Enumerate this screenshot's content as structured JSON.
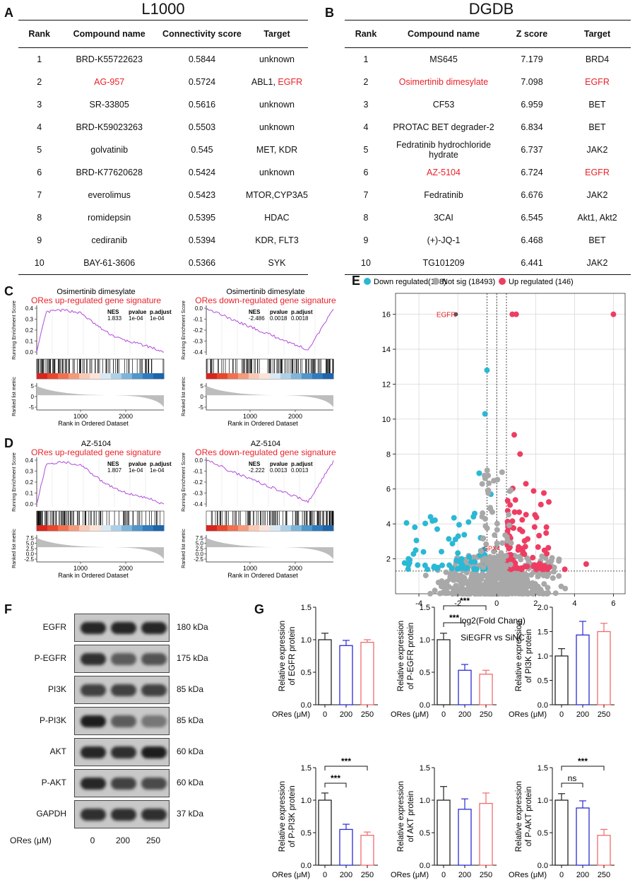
{
  "panels": {
    "A": "A",
    "B": "B",
    "C": "C",
    "D": "D",
    "E": "E",
    "F": "F",
    "G": "G"
  },
  "tableA": {
    "title": "L1000",
    "headers": [
      "Rank",
      "Compound name",
      "Connectivity score",
      "Target"
    ],
    "rows": [
      [
        "1",
        "BRD-K55722623",
        "0.5844",
        "unknown"
      ],
      [
        "2",
        "AG-957",
        "0.5724",
        "ABL1, EGFR"
      ],
      [
        "3",
        "SR-33805",
        "0.5616",
        "unknown"
      ],
      [
        "4",
        "BRD-K59023263",
        "0.5503",
        "unknown"
      ],
      [
        "5",
        "golvatinib",
        "0.545",
        "MET, KDR"
      ],
      [
        "6",
        "BRD-K77620628",
        "0.5424",
        "unknown"
      ],
      [
        "7",
        "everolimus",
        "0.5423",
        "MTOR,CYP3A5"
      ],
      [
        "8",
        "romidepsin",
        "0.5395",
        "HDAC"
      ],
      [
        "9",
        "cediranib",
        "0.5394",
        "KDR, FLT3"
      ],
      [
        "10",
        "BAY-61-3606",
        "0.5366",
        "SYK"
      ]
    ]
  },
  "tableB": {
    "title": "DGDB",
    "headers": [
      "Rank",
      "Compound name",
      "Z score",
      "Target"
    ],
    "rows": [
      [
        "1",
        "MS645",
        "7.179",
        "BRD4"
      ],
      [
        "2",
        "Osimertinib dimesylate",
        "7.098",
        "EGFR"
      ],
      [
        "3",
        "CF53",
        "6.959",
        "BET"
      ],
      [
        "4",
        "PROTAC BET degrader-2",
        "6.834",
        "BET"
      ],
      [
        "5",
        "Fedratinib hydrochloride hydrate",
        "6.737",
        "JAK2"
      ],
      [
        "6",
        "AZ-5104",
        "6.724",
        "EGFR"
      ],
      [
        "7",
        "Fedratinib",
        "6.676",
        "JAK2"
      ],
      [
        "8",
        "3CAI",
        "6.545",
        "Akt1, Akt2"
      ],
      [
        "9",
        "(+)-JQ-1",
        "6.468",
        "BET"
      ],
      [
        "10",
        "TG101209",
        "6.441",
        "JAK2"
      ]
    ]
  },
  "gsea": {
    "ylabel_top": "Running Enrichment Score",
    "ylabel_bottom": "Ranked list metric",
    "xlabel": "Rank in Ordered Dataset",
    "stat_headers": [
      "NES",
      "pvalue",
      "p.adjust"
    ],
    "plots": [
      {
        "drug": "Osimertinib dimesylate",
        "signature": "ORes up-regulated gene signature",
        "nes": "1.833",
        "pvalue": "1e-04",
        "padj": "1e-04",
        "yticks": [
          "0.4",
          "0.3",
          "0.2",
          "0.1",
          "0.0"
        ],
        "mticks": [
          "5",
          "0",
          "-5"
        ]
      },
      {
        "drug": "Osimertinib dimesylate",
        "signature": "ORes down-regulated gene signature",
        "nes": "-2.486",
        "pvalue": "0.0018",
        "padj": "0.0018",
        "yticks": [
          "0.0",
          "-0.1",
          "-0.2",
          "-0.3",
          "-0.4"
        ],
        "mticks": [
          "5",
          "0",
          "-5"
        ]
      },
      {
        "drug": "AZ-5104",
        "signature": "ORes up-regulated gene signature",
        "nes": "1.807",
        "pvalue": "1e-04",
        "padj": "1e-04",
        "yticks": [
          "0.4",
          "0.3",
          "0.2",
          "0.1",
          "0.0"
        ],
        "mticks": [
          "7.5",
          "5.0",
          "2.5",
          "0.0",
          "-2.5"
        ]
      },
      {
        "drug": "AZ-5104",
        "signature": "ORes down-regulated gene signature",
        "nes": "-2.222",
        "pvalue": "0.0013",
        "padj": "0.0013",
        "yticks": [
          "0.0",
          "-0.1",
          "-0.2",
          "-0.3",
          "-0.4"
        ],
        "mticks": [
          "7.5",
          "5.0",
          "2.5",
          "0.0",
          "-2.5"
        ]
      }
    ],
    "xticks": [
      "1000",
      "2000"
    ]
  },
  "volcano": {
    "legend": [
      {
        "label": "Down regulated(108)",
        "color": "#2ab8d4"
      },
      {
        "label": "Not sig (18493)",
        "color": "#a8a8a8"
      },
      {
        "label": "Up regulated (146)",
        "color": "#ee3d63"
      }
    ],
    "xlabel": "log2(Fold Chang)",
    "subtitle": "SiEGFR vs SiNC",
    "xticks": [
      "-4",
      "-2",
      "0",
      "2",
      "4",
      "6"
    ],
    "yticks": [
      "2",
      "4",
      "6",
      "8",
      "10",
      "12",
      "14",
      "16"
    ],
    "annotations": [
      "EGFR",
      "GPX4"
    ]
  },
  "western": {
    "bands": [
      {
        "name": "EGFR",
        "kda": "180 kDa"
      },
      {
        "name": "P-EGFR",
        "kda": "175 kDa"
      },
      {
        "name": "PI3K",
        "kda": "85 kDa"
      },
      {
        "name": "P-PI3K",
        "kda": "85 kDa"
      },
      {
        "name": "AKT",
        "kda": "60 kDa"
      },
      {
        "name": "P-AKT",
        "kda": "60 kDa"
      },
      {
        "name": "GAPDH",
        "kda": "37 kDa"
      }
    ],
    "xlabel": "ORes (μM)",
    "doses": [
      "0",
      "200",
      "250"
    ]
  },
  "chart_data": [
    {
      "type": "bar",
      "ylabel": "Relative expression of EGFR protein",
      "categories": [
        "0",
        "200",
        "250"
      ],
      "values": [
        1.0,
        0.91,
        0.96
      ],
      "errors": [
        0.1,
        0.08,
        0.04
      ],
      "ylim": [
        0,
        1.5
      ],
      "yticks": [
        "0.0",
        "0.5",
        "1.0",
        "1.5"
      ],
      "xlabel": "ORes (μM)",
      "sig": []
    },
    {
      "type": "bar",
      "ylabel": "Relative expression of P-EGFR protein",
      "categories": [
        "0",
        "200",
        "250"
      ],
      "values": [
        1.0,
        0.53,
        0.47
      ],
      "errors": [
        0.1,
        0.09,
        0.06
      ],
      "ylim": [
        0,
        1.5
      ],
      "yticks": [
        "0.0",
        "0.5",
        "1.0",
        "1.5"
      ],
      "xlabel": "ORes (μM)",
      "sig": [
        {
          "label": "***",
          "from": 0,
          "to": 2
        },
        {
          "label": "***",
          "from": 0,
          "to": 1
        }
      ]
    },
    {
      "type": "bar",
      "ylabel": "Relative expression of PI3K protein",
      "categories": [
        "0",
        "200",
        "250"
      ],
      "values": [
        1.0,
        1.43,
        1.5
      ],
      "errors": [
        0.15,
        0.28,
        0.17
      ],
      "ylim": [
        0,
        2.0
      ],
      "yticks": [
        "0.0",
        "0.5",
        "1.0",
        "1.5",
        "2.0"
      ],
      "xlabel": "ORes (μM)",
      "sig": []
    },
    {
      "type": "bar",
      "ylabel": "Relative expression of P-PI3K protein",
      "categories": [
        "0",
        "200",
        "250"
      ],
      "values": [
        1.0,
        0.55,
        0.46
      ],
      "errors": [
        0.11,
        0.08,
        0.05
      ],
      "ylim": [
        0,
        1.5
      ],
      "yticks": [
        "0.0",
        "0.5",
        "1.0",
        "1.5"
      ],
      "xlabel": "ORes (μM)",
      "sig": [
        {
          "label": "***",
          "from": 0,
          "to": 2
        },
        {
          "label": "***",
          "from": 0,
          "to": 1
        }
      ]
    },
    {
      "type": "bar",
      "ylabel": "Relative expression of AKT protein",
      "categories": [
        "0",
        "200",
        "250"
      ],
      "values": [
        1.0,
        0.86,
        0.95
      ],
      "errors": [
        0.21,
        0.16,
        0.16
      ],
      "ylim": [
        0,
        1.5
      ],
      "yticks": [
        "0.0",
        "0.5",
        "1.0",
        "1.5"
      ],
      "xlabel": "ORes (μM)",
      "sig": []
    },
    {
      "type": "bar",
      "ylabel": "Relative expression of P-AKT protein",
      "categories": [
        "0",
        "200",
        "250"
      ],
      "values": [
        1.0,
        0.88,
        0.46
      ],
      "errors": [
        0.1,
        0.11,
        0.09
      ],
      "ylim": [
        0,
        1.5
      ],
      "yticks": [
        "0.0",
        "0.5",
        "1.0",
        "1.5"
      ],
      "xlabel": "ORes (μM)",
      "sig": [
        {
          "label": "***",
          "from": 0,
          "to": 2
        },
        {
          "label": "ns",
          "from": 0,
          "to": 1
        }
      ]
    }
  ],
  "colors": {
    "red": "#e8222a",
    "blue": "#2b2bd6",
    "barred": "#f06b6b",
    "purple": "#b04bd8"
  }
}
